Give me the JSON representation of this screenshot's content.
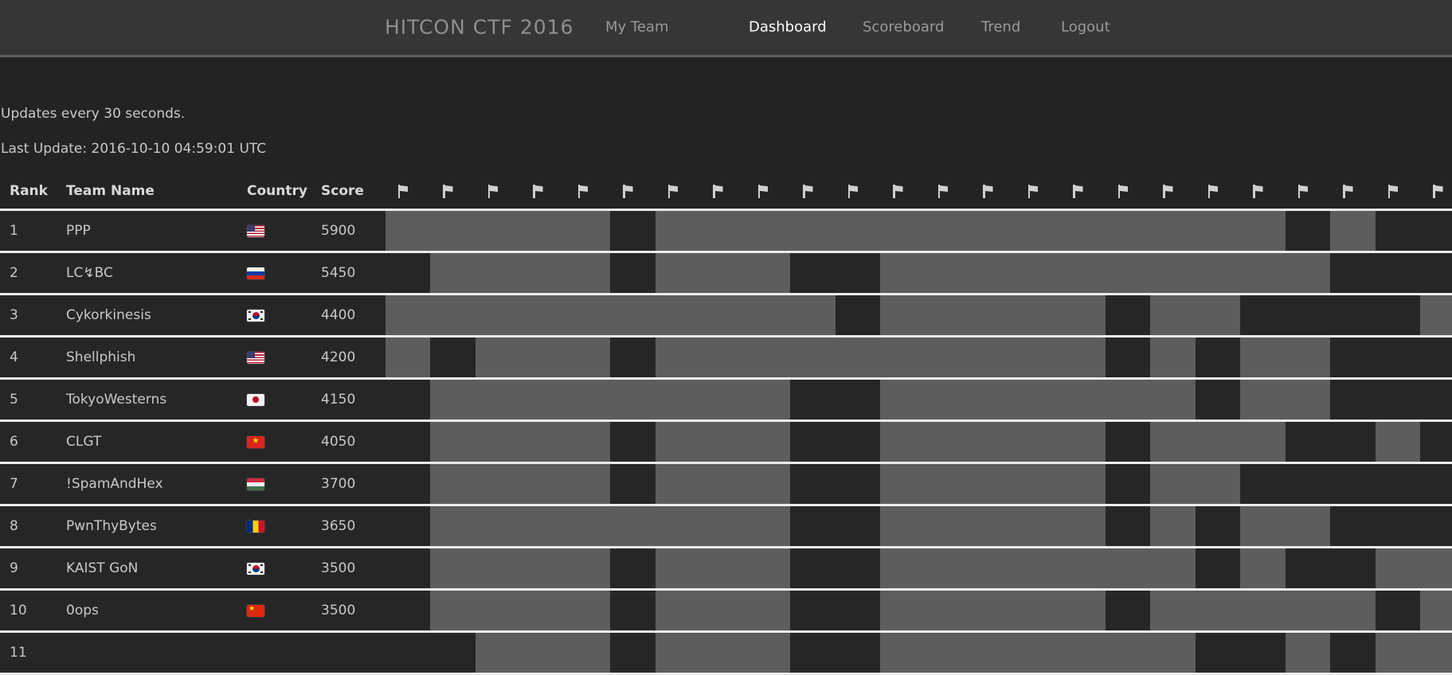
{
  "nav": {
    "brand": "HITCON CTF 2016",
    "items": [
      {
        "label": "My Team",
        "active": false
      },
      {
        "label": "Dashboard",
        "active": true
      },
      {
        "label": "Scoreboard",
        "active": false
      },
      {
        "label": "Trend",
        "active": false
      },
      {
        "label": "Logout",
        "active": false
      }
    ]
  },
  "info": {
    "updates_text": "Updates every 30 seconds.",
    "last_update_text": "Last Update: 2016-10-10 04:59:01 UTC"
  },
  "table": {
    "headers": {
      "rank": "Rank",
      "team": "Team Name",
      "country": "Country",
      "score": "Score"
    },
    "challenge_columns": 24,
    "challenge_header_icon": "flag-icon",
    "legend": {
      "solved_color": "#5d5d5d",
      "unsolved_color": "#262626"
    },
    "rows": [
      {
        "rank": "1",
        "team": "PPP",
        "country": "us",
        "score": "5900",
        "unsolved_cols": [
          5,
          20,
          22,
          23
        ]
      },
      {
        "rank": "2",
        "team": "LC↯BC",
        "country": "ru",
        "score": "5450",
        "unsolved_cols": [
          0,
          5,
          9,
          10,
          21,
          22,
          23
        ]
      },
      {
        "rank": "3",
        "team": "Cykorkinesis",
        "country": "kr",
        "score": "4400",
        "unsolved_cols": [
          10,
          16,
          19,
          20,
          21,
          22
        ]
      },
      {
        "rank": "4",
        "team": "Shellphish",
        "country": "us",
        "score": "4200",
        "unsolved_cols": [
          1,
          5,
          16,
          18,
          21,
          22,
          23
        ]
      },
      {
        "rank": "5",
        "team": "TokyoWesterns",
        "country": "jp",
        "score": "4150",
        "unsolved_cols": [
          0,
          9,
          10,
          18,
          21,
          22,
          23
        ]
      },
      {
        "rank": "6",
        "team": "CLGT",
        "country": "vn",
        "score": "4050",
        "unsolved_cols": [
          0,
          5,
          9,
          10,
          16,
          20,
          21,
          23
        ]
      },
      {
        "rank": "7",
        "team": "!SpamAndHex",
        "country": "hu",
        "score": "3700",
        "unsolved_cols": [
          0,
          5,
          9,
          10,
          16,
          19,
          20,
          21,
          22,
          23
        ]
      },
      {
        "rank": "8",
        "team": "PwnThyBytes",
        "country": "ro",
        "score": "3650",
        "unsolved_cols": [
          0,
          9,
          10,
          16,
          18,
          21,
          22,
          23
        ]
      },
      {
        "rank": "9",
        "team": "KAIST GoN",
        "country": "kr",
        "score": "3500",
        "unsolved_cols": [
          0,
          5,
          9,
          10,
          18,
          20,
          21
        ]
      },
      {
        "rank": "10",
        "team": "0ops",
        "country": "cn",
        "score": "3500",
        "unsolved_cols": [
          0,
          5,
          9,
          10,
          16,
          22
        ]
      },
      {
        "rank": "11",
        "team": "",
        "country": "",
        "score": "",
        "unsolved_cols": [
          0,
          1,
          5,
          9,
          10,
          18,
          19,
          21
        ]
      }
    ]
  },
  "colors": {
    "page_bg": "#232323",
    "nav_bg": "#363636",
    "cell_bg": "#262626",
    "solved_bg": "#5d5d5d",
    "active_link": "#fdfdfd"
  }
}
